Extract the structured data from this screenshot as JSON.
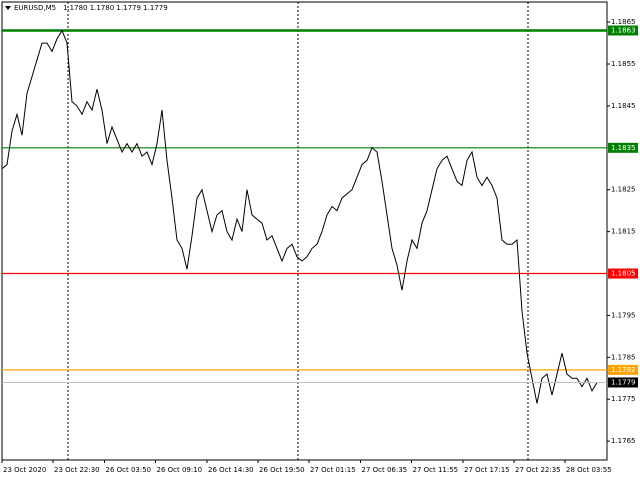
{
  "chart_data": {
    "type": "line",
    "symbol": "EURUSD,M5",
    "ohlc": "1.1780 1.1780 1.1779 1.1779",
    "series": [
      {
        "color": "#000000",
        "values": [
          1.183,
          1.1831,
          1.1839,
          1.1843,
          1.1838,
          1.1848,
          1.1852,
          1.1856,
          1.186,
          1.186,
          1.1858,
          1.1861,
          1.1863,
          1.186,
          1.1846,
          1.1845,
          1.1843,
          1.1846,
          1.1844,
          1.1849,
          1.1844,
          1.1836,
          1.184,
          1.1837,
          1.1834,
          1.1836,
          1.1834,
          1.1836,
          1.1833,
          1.1834,
          1.1831,
          1.1836,
          1.1844,
          1.1832,
          1.1823,
          1.1813,
          1.1811,
          1.1806,
          1.1814,
          1.1823,
          1.1825,
          1.182,
          1.1815,
          1.1819,
          1.182,
          1.1815,
          1.1813,
          1.1818,
          1.1815,
          1.1825,
          1.1819,
          1.1818,
          1.1817,
          1.1813,
          1.1814,
          1.1811,
          1.1808,
          1.1811,
          1.1812,
          1.1809,
          1.1808,
          1.1809,
          1.1811,
          1.1812,
          1.1815,
          1.1819,
          1.1821,
          1.182,
          1.1823,
          1.1824,
          1.1825,
          1.1828,
          1.1831,
          1.1832,
          1.1835,
          1.1834,
          1.1827,
          1.1819,
          1.1811,
          1.1807,
          1.1801,
          1.1808,
          1.1813,
          1.1811,
          1.1817,
          1.182,
          1.1825,
          1.183,
          1.1832,
          1.1833,
          1.183,
          1.1827,
          1.1826,
          1.1832,
          1.1834,
          1.1828,
          1.1826,
          1.1828,
          1.1826,
          1.1823,
          1.1813,
          1.1812,
          1.1812,
          1.1813,
          1.1796,
          1.1786,
          1.178,
          1.1774,
          1.178,
          1.1781,
          1.1776,
          1.1781,
          1.1786,
          1.1781,
          1.178,
          1.178,
          1.1778,
          1.178,
          1.1777,
          1.1779
        ]
      }
    ],
    "xlim": [
      0,
      121
    ],
    "xticks": [
      {
        "value": 0,
        "label": "23 Oct 2020"
      },
      {
        "value": 10.2,
        "label": "23 Oct 22:30"
      },
      {
        "value": 20.5,
        "label": "26 Oct 03:50"
      },
      {
        "value": 30.7,
        "label": "26 Oct 09:10"
      },
      {
        "value": 41,
        "label": "26 Oct 14:30"
      },
      {
        "value": 51.2,
        "label": "26 Oct 19:50"
      },
      {
        "value": 61.4,
        "label": "27 Oct 01:15"
      },
      {
        "value": 71.7,
        "label": "27 Oct 06:35"
      },
      {
        "value": 81.9,
        "label": "27 Oct 11:55"
      },
      {
        "value": 92.2,
        "label": "27 Oct 17:15"
      },
      {
        "value": 102.4,
        "label": "27 Oct 22:35"
      },
      {
        "value": 112.6,
        "label": "28 Oct 03:55"
      }
    ],
    "ylim": [
      1.17605,
      1.18698
    ],
    "yticks": [
      1.1865,
      1.1855,
      1.1845,
      1.1825,
      1.1815,
      1.1795,
      1.1785,
      1.1775,
      1.1765
    ],
    "levels": [
      {
        "value": 1.1863,
        "color": "#008000"
      },
      {
        "value": 1.1835,
        "color": "#008000"
      },
      {
        "value": 1.1805,
        "color": "#ff0000"
      },
      {
        "value": 1.1782,
        "color": "#ffa500"
      }
    ],
    "current_price": {
      "value": 1.1779,
      "color": "#c0c0c0"
    }
  }
}
